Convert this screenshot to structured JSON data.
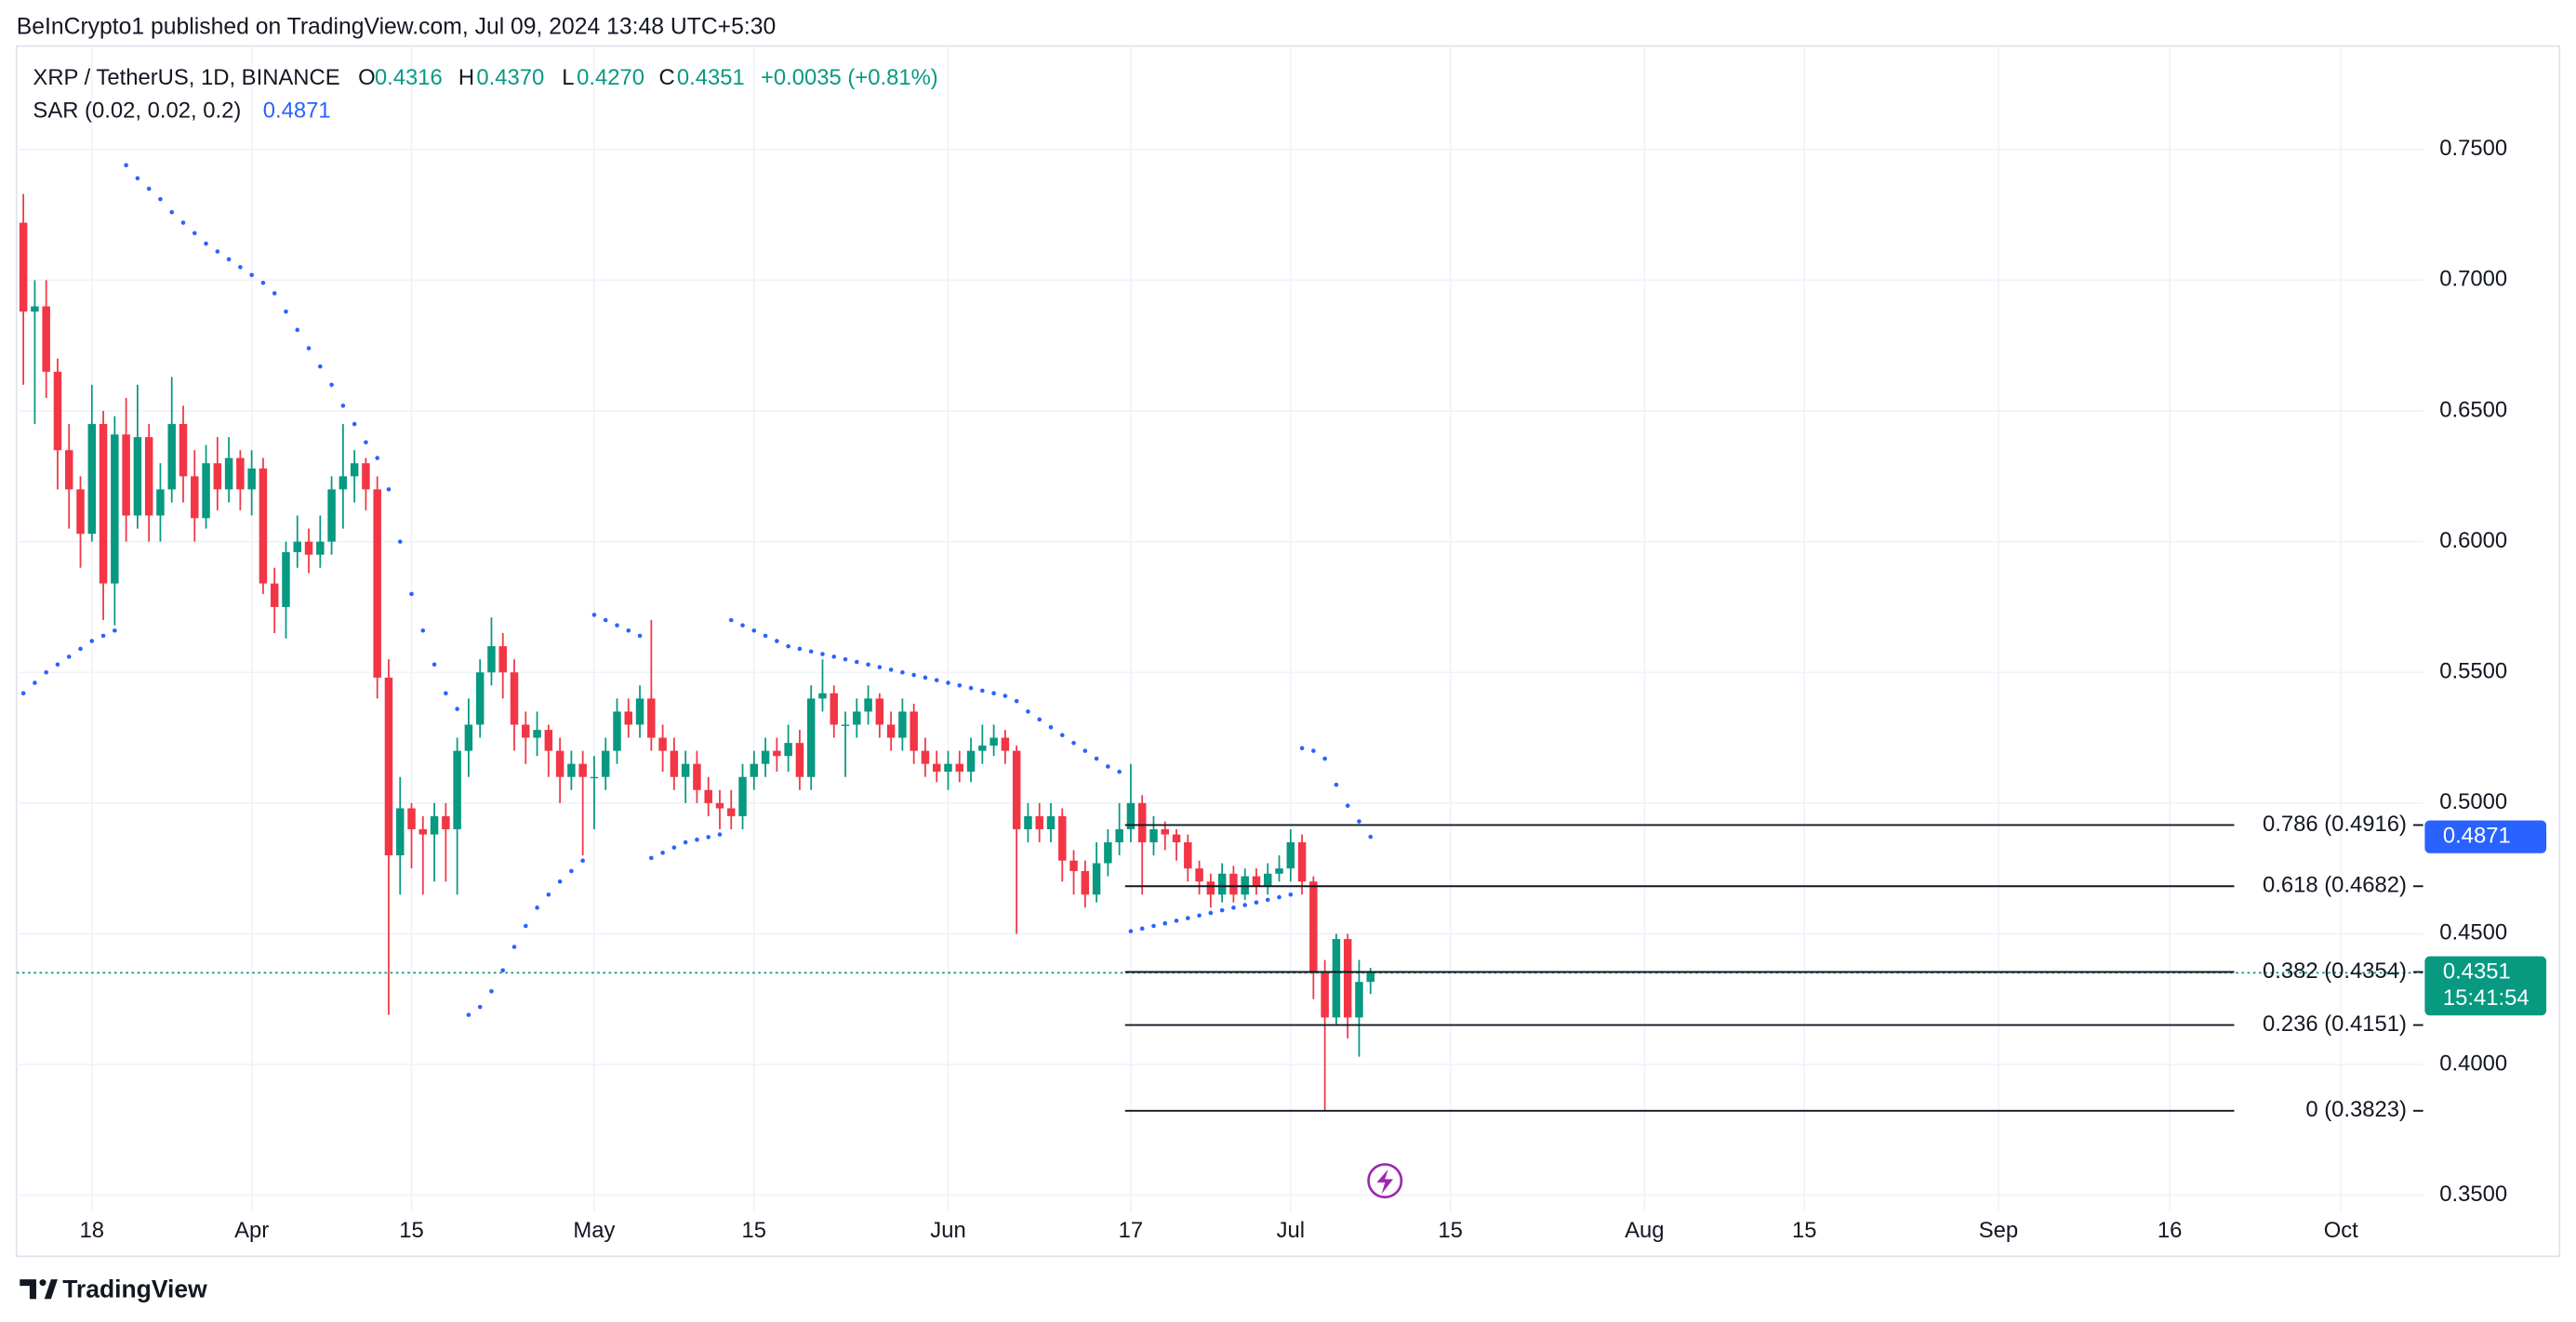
{
  "header": {
    "attribution": "BeInCrypto1 published on TradingView.com, Jul 09, 2024 13:48 UTC+5:30"
  },
  "footer": {
    "brand": "TradingView"
  },
  "chart_data": {
    "type": "candlestick",
    "symbol": "XRP / TetherUS, 1D, BINANCE",
    "ohlc": [
      {
        "label": "O",
        "text": "0.4316"
      },
      {
        "label": "H",
        "text": "0.4370"
      },
      {
        "label": "L",
        "text": "0.4270"
      },
      {
        "label": "C",
        "text": "0.4351"
      }
    ],
    "change": "+0.0035 (+0.81%)",
    "up_color": "#089981",
    "down_color": "#f23645",
    "x": [
      0,
      1,
      2,
      3,
      4,
      5,
      6,
      7,
      8,
      9,
      10,
      11,
      12,
      13,
      14,
      15,
      16,
      17,
      18,
      19,
      20,
      21,
      22,
      23,
      24,
      25,
      26,
      27,
      28,
      29,
      30,
      31,
      32,
      33,
      34,
      35,
      36,
      37,
      38,
      39,
      40,
      41,
      42,
      43,
      44,
      45,
      46,
      47,
      48,
      49,
      50,
      51,
      52,
      53,
      54,
      55,
      56,
      57,
      58,
      59,
      60,
      61,
      62,
      63,
      64,
      65,
      66,
      67,
      68,
      69,
      70,
      71,
      72,
      73,
      74,
      75,
      76,
      77,
      78,
      79,
      80,
      81,
      82,
      83,
      84,
      85,
      86,
      87,
      88,
      89,
      90,
      91,
      92,
      93,
      94,
      95,
      96,
      97,
      98,
      99,
      100,
      101,
      102,
      103,
      104,
      105,
      106,
      107,
      108,
      109,
      110,
      111,
      112,
      113,
      114,
      115,
      116,
      117,
      118
    ],
    "open": [
      0.722,
      0.688,
      0.69,
      0.665,
      0.635,
      0.62,
      0.603,
      0.645,
      0.584,
      0.641,
      0.61,
      0.64,
      0.61,
      0.62,
      0.645,
      0.625,
      0.609,
      0.63,
      0.62,
      0.632,
      0.62,
      0.628,
      0.584,
      0.575,
      0.596,
      0.6,
      0.595,
      0.6,
      0.62,
      0.625,
      0.63,
      0.62,
      0.548,
      0.48,
      0.498,
      0.49,
      0.488,
      0.495,
      0.49,
      0.52,
      0.53,
      0.55,
      0.56,
      0.55,
      0.53,
      0.525,
      0.528,
      0.52,
      0.51,
      0.515,
      0.51,
      0.51,
      0.52,
      0.535,
      0.53,
      0.54,
      0.525,
      0.52,
      0.51,
      0.515,
      0.505,
      0.5,
      0.498,
      0.495,
      0.51,
      0.515,
      0.52,
      0.518,
      0.523,
      0.51,
      0.54,
      0.542,
      0.53,
      0.53,
      0.535,
      0.54,
      0.53,
      0.525,
      0.535,
      0.52,
      0.515,
      0.512,
      0.515,
      0.512,
      0.52,
      0.522,
      0.525,
      0.52,
      0.49,
      0.495,
      0.49,
      0.495,
      0.478,
      0.474,
      0.465,
      0.477,
      0.485,
      0.49,
      0.5,
      0.485,
      0.49,
      0.488,
      0.485,
      0.475,
      0.47,
      0.465,
      0.473,
      0.465,
      0.472,
      0.468,
      0.473,
      0.475,
      0.485,
      0.47,
      0.435,
      0.418,
      0.448,
      0.418,
      0.4316
    ],
    "high": [
      0.733,
      0.7,
      0.7,
      0.67,
      0.645,
      0.625,
      0.66,
      0.65,
      0.648,
      0.655,
      0.66,
      0.645,
      0.63,
      0.663,
      0.652,
      0.635,
      0.637,
      0.64,
      0.64,
      0.635,
      0.635,
      0.632,
      0.59,
      0.6,
      0.61,
      0.605,
      0.61,
      0.625,
      0.645,
      0.635,
      0.632,
      0.625,
      0.555,
      0.51,
      0.5,
      0.495,
      0.5,
      0.5,
      0.525,
      0.54,
      0.555,
      0.571,
      0.565,
      0.555,
      0.535,
      0.535,
      0.53,
      0.525,
      0.52,
      0.52,
      0.518,
      0.525,
      0.54,
      0.54,
      0.545,
      0.57,
      0.53,
      0.525,
      0.52,
      0.52,
      0.51,
      0.505,
      0.505,
      0.515,
      0.52,
      0.525,
      0.525,
      0.53,
      0.528,
      0.545,
      0.555,
      0.545,
      0.535,
      0.54,
      0.545,
      0.542,
      0.535,
      0.54,
      0.538,
      0.525,
      0.52,
      0.52,
      0.52,
      0.525,
      0.53,
      0.53,
      0.528,
      0.522,
      0.5,
      0.5,
      0.5,
      0.498,
      0.482,
      0.478,
      0.485,
      0.49,
      0.5,
      0.515,
      0.503,
      0.495,
      0.493,
      0.49,
      0.488,
      0.478,
      0.473,
      0.477,
      0.476,
      0.475,
      0.475,
      0.477,
      0.48,
      0.49,
      0.488,
      0.472,
      0.44,
      0.45,
      0.45,
      0.44,
      0.437
    ],
    "low": [
      0.66,
      0.645,
      0.655,
      0.62,
      0.605,
      0.59,
      0.6,
      0.57,
      0.568,
      0.6,
      0.605,
      0.6,
      0.6,
      0.615,
      0.615,
      0.6,
      0.605,
      0.612,
      0.615,
      0.612,
      0.61,
      0.58,
      0.565,
      0.563,
      0.59,
      0.588,
      0.59,
      0.595,
      0.605,
      0.615,
      0.612,
      0.54,
      0.419,
      0.465,
      0.475,
      0.465,
      0.47,
      0.47,
      0.465,
      0.51,
      0.525,
      0.545,
      0.54,
      0.52,
      0.515,
      0.518,
      0.51,
      0.5,
      0.505,
      0.48,
      0.49,
      0.505,
      0.515,
      0.525,
      0.525,
      0.52,
      0.512,
      0.505,
      0.5,
      0.5,
      0.495,
      0.49,
      0.49,
      0.49,
      0.505,
      0.51,
      0.512,
      0.512,
      0.505,
      0.505,
      0.535,
      0.525,
      0.51,
      0.525,
      0.53,
      0.525,
      0.52,
      0.52,
      0.515,
      0.51,
      0.508,
      0.505,
      0.508,
      0.508,
      0.515,
      0.518,
      0.515,
      0.45,
      0.485,
      0.485,
      0.485,
      0.47,
      0.465,
      0.46,
      0.462,
      0.472,
      0.48,
      0.485,
      0.465,
      0.48,
      0.482,
      0.478,
      0.47,
      0.465,
      0.46,
      0.462,
      0.462,
      0.463,
      0.465,
      0.465,
      0.47,
      0.47,
      0.465,
      0.425,
      0.382,
      0.415,
      0.41,
      0.403,
      0.427
    ],
    "close": [
      0.688,
      0.69,
      0.665,
      0.635,
      0.62,
      0.603,
      0.645,
      0.584,
      0.641,
      0.61,
      0.64,
      0.61,
      0.62,
      0.645,
      0.625,
      0.609,
      0.63,
      0.62,
      0.632,
      0.62,
      0.628,
      0.584,
      0.575,
      0.596,
      0.6,
      0.595,
      0.6,
      0.62,
      0.625,
      0.63,
      0.62,
      0.548,
      0.48,
      0.498,
      0.49,
      0.488,
      0.495,
      0.49,
      0.52,
      0.53,
      0.55,
      0.56,
      0.55,
      0.53,
      0.525,
      0.528,
      0.52,
      0.51,
      0.515,
      0.51,
      0.51,
      0.52,
      0.535,
      0.53,
      0.54,
      0.525,
      0.52,
      0.51,
      0.515,
      0.505,
      0.5,
      0.498,
      0.495,
      0.51,
      0.515,
      0.52,
      0.518,
      0.523,
      0.51,
      0.54,
      0.542,
      0.53,
      0.53,
      0.535,
      0.54,
      0.53,
      0.525,
      0.535,
      0.52,
      0.515,
      0.512,
      0.515,
      0.512,
      0.52,
      0.522,
      0.525,
      0.52,
      0.49,
      0.495,
      0.49,
      0.495,
      0.478,
      0.474,
      0.465,
      0.477,
      0.485,
      0.49,
      0.5,
      0.485,
      0.49,
      0.488,
      0.485,
      0.475,
      0.47,
      0.465,
      0.473,
      0.465,
      0.472,
      0.468,
      0.473,
      0.475,
      0.485,
      0.47,
      0.435,
      0.418,
      0.448,
      0.418,
      0.4316,
      0.4351
    ],
    "indicator": {
      "name": "SAR (0.02, 0.02, 0.2)",
      "color": "#2962ff",
      "values": [
        0.542,
        0.546,
        0.55,
        0.553,
        0.556,
        0.559,
        0.562,
        0.564,
        0.566,
        0.744,
        0.739,
        0.735,
        0.731,
        0.726,
        0.722,
        0.718,
        0.714,
        0.711,
        0.708,
        0.705,
        0.702,
        0.699,
        0.695,
        0.688,
        0.681,
        0.674,
        0.667,
        0.66,
        0.652,
        0.645,
        0.638,
        0.632,
        0.62,
        0.6,
        0.58,
        0.566,
        0.553,
        0.542,
        0.536,
        0.419,
        0.422,
        0.428,
        0.436,
        0.445,
        0.453,
        0.46,
        0.465,
        0.47,
        0.474,
        0.478,
        0.572,
        0.57,
        0.568,
        0.566,
        0.564,
        0.479,
        0.481,
        0.483,
        0.485,
        0.486,
        0.487,
        0.488,
        0.57,
        0.568,
        0.566,
        0.564,
        0.562,
        0.56,
        0.559,
        0.558,
        0.557,
        0.556,
        0.555,
        0.554,
        0.553,
        0.552,
        0.551,
        0.55,
        0.549,
        0.548,
        0.547,
        0.546,
        0.545,
        0.544,
        0.543,
        0.542,
        0.541,
        0.539,
        0.535,
        0.532,
        0.529,
        0.526,
        0.523,
        0.52,
        0.517,
        0.514,
        0.512,
        0.451,
        0.452,
        0.453,
        0.454,
        0.455,
        0.456,
        0.457,
        0.458,
        0.459,
        0.46,
        0.461,
        0.462,
        0.463,
        0.464,
        0.465,
        0.521,
        0.52,
        0.517,
        0.507,
        0.499,
        0.493,
        0.4871
      ]
    },
    "fib_from_x": 96.5,
    "fib_levels": [
      {
        "label": "0.786 (0.4916)",
        "value": 0.4916
      },
      {
        "label": "0.618 (0.4682)",
        "value": 0.4682
      },
      {
        "label": "0.382 (0.4354)",
        "value": 0.4354
      },
      {
        "label": "0.236 (0.4151)",
        "value": 0.4151
      },
      {
        "label": "0 (0.3823)",
        "value": 0.3823
      }
    ],
    "countdown": "15:41:54",
    "xlim": [
      -0.6,
      210.2
    ],
    "xticks": [
      {
        "value": 6,
        "label": "18"
      },
      {
        "value": 20,
        "label": "Apr"
      },
      {
        "value": 34,
        "label": "15"
      },
      {
        "value": 50,
        "label": "May"
      },
      {
        "value": 64,
        "label": "15"
      },
      {
        "value": 81,
        "label": "Jun"
      },
      {
        "value": 97,
        "label": "17"
      },
      {
        "value": 111,
        "label": "Jul"
      },
      {
        "value": 125,
        "label": "15"
      },
      {
        "value": 142,
        "label": "Aug"
      },
      {
        "value": 156,
        "label": "15"
      },
      {
        "value": 173,
        "label": "Sep"
      },
      {
        "value": 188,
        "label": "16"
      },
      {
        "value": 203,
        "label": "Oct"
      }
    ],
    "ylim": [
      0.3436,
      0.7896
    ],
    "yticks": [
      {
        "value": 0.35,
        "label": "0.3500"
      },
      {
        "value": 0.4,
        "label": "0.4000"
      },
      {
        "value": 0.45,
        "label": "0.4500"
      },
      {
        "value": 0.5,
        "label": "0.5000"
      },
      {
        "value": 0.55,
        "label": "0.5500"
      },
      {
        "value": 0.6,
        "label": "0.6000"
      },
      {
        "value": 0.65,
        "label": "0.6500"
      },
      {
        "value": 0.7,
        "label": "0.7000"
      },
      {
        "value": 0.75,
        "label": "0.7500"
      }
    ],
    "grid": true
  }
}
